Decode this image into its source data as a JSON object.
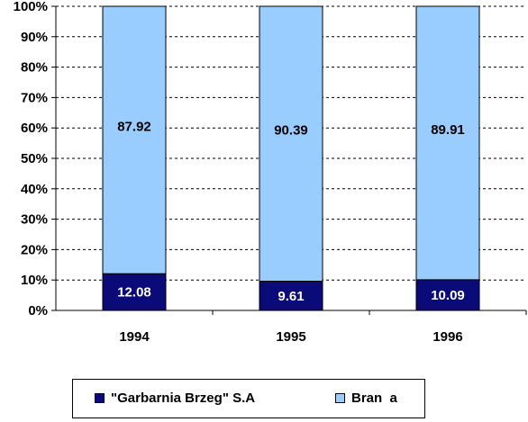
{
  "chart_data": {
    "type": "bar",
    "stacked": true,
    "percent": true,
    "categories": [
      "1994",
      "1995",
      "1996"
    ],
    "series": [
      {
        "name": "\"Garbarnia Brzeg\" S.A",
        "values": [
          12.08,
          9.61,
          10.09
        ],
        "labels": [
          "12.08",
          "9.61",
          "10.09"
        ],
        "color": "#0a0a78",
        "label_color": "#ffffff"
      },
      {
        "name": "Bran  a",
        "values": [
          87.92,
          90.39,
          89.91
        ],
        "labels": [
          "87.92",
          "90.39",
          "89.91"
        ],
        "color": "#99ccff",
        "label_color": "#000000"
      }
    ],
    "ylim": [
      0,
      100
    ],
    "yticks": [
      "0%",
      "10%",
      "20%",
      "30%",
      "40%",
      "50%",
      "60%",
      "70%",
      "80%",
      "90%",
      "100%"
    ],
    "grid": true,
    "legend_position": "bottom"
  }
}
